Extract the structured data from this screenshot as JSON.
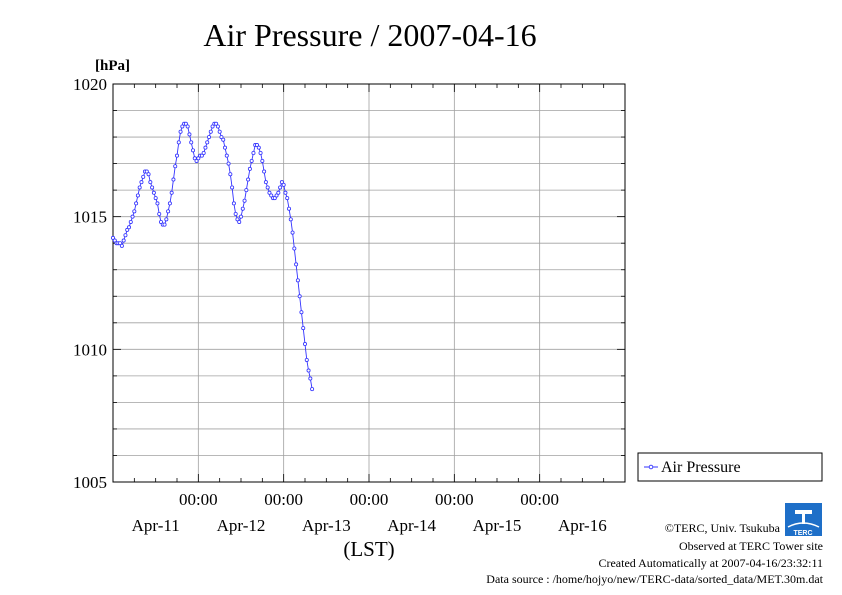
{
  "chart_data": {
    "type": "line",
    "title": "Air Pressure / 2007-04-16",
    "ylabel": "[hPa]",
    "xlabel": "(LST)",
    "ylim": [
      1005,
      1020
    ],
    "y_ticks": [
      "1005",
      "1010",
      "1015",
      "1020"
    ],
    "x_range_hours": [
      0,
      144
    ],
    "x_time_labels": [
      "00:00",
      "00:00",
      "00:00",
      "00:00",
      "00:00"
    ],
    "x_date_labels": [
      "Apr-11",
      "Apr-12",
      "Apr-13",
      "Apr-14",
      "Apr-15",
      "Apr-16"
    ],
    "grid": true,
    "legend_position": "right",
    "series": [
      {
        "name": "Air Pressure",
        "color": "#3333ff",
        "x_hours_start": 0,
        "x_step_hours": 0.5,
        "values": [
          1014.2,
          1014.1,
          1014.0,
          1014.0,
          1014.0,
          1013.9,
          1014.1,
          1014.3,
          1014.5,
          1014.6,
          1014.8,
          1015.0,
          1015.2,
          1015.5,
          1015.8,
          1016.1,
          1016.3,
          1016.5,
          1016.7,
          1016.7,
          1016.6,
          1016.3,
          1016.1,
          1015.9,
          1015.7,
          1015.5,
          1015.1,
          1014.8,
          1014.7,
          1014.7,
          1014.9,
          1015.2,
          1015.5,
          1015.9,
          1016.4,
          1016.9,
          1017.3,
          1017.8,
          1018.2,
          1018.4,
          1018.5,
          1018.5,
          1018.4,
          1018.1,
          1017.8,
          1017.5,
          1017.2,
          1017.1,
          1017.2,
          1017.3,
          1017.3,
          1017.4,
          1017.6,
          1017.8,
          1018.0,
          1018.2,
          1018.4,
          1018.5,
          1018.5,
          1018.4,
          1018.2,
          1018.0,
          1017.9,
          1017.6,
          1017.3,
          1017.0,
          1016.6,
          1016.1,
          1015.5,
          1015.1,
          1014.9,
          1014.8,
          1015.0,
          1015.3,
          1015.6,
          1016.0,
          1016.4,
          1016.8,
          1017.1,
          1017.4,
          1017.7,
          1017.7,
          1017.6,
          1017.4,
          1017.1,
          1016.7,
          1016.3,
          1016.1,
          1015.9,
          1015.8,
          1015.7,
          1015.7,
          1015.8,
          1015.9,
          1016.1,
          1016.3,
          1016.2,
          1015.9,
          1015.7,
          1015.3,
          1014.9,
          1014.4,
          1013.8,
          1013.2,
          1012.6,
          1012.0,
          1011.4,
          1010.8,
          1010.2,
          1009.6,
          1009.2,
          1008.9,
          1008.5
        ]
      }
    ]
  },
  "credits": {
    "copyright": "©TERC, Univ. Tsukuba",
    "observed": "Observed at TERC Tower site",
    "created": "Created Automatically at 2007-04-16/23:32:11",
    "source": "Data source : /home/hojyo/new/TERC-data/sorted_data/MET.30m.dat",
    "logo_text": "TERC"
  }
}
